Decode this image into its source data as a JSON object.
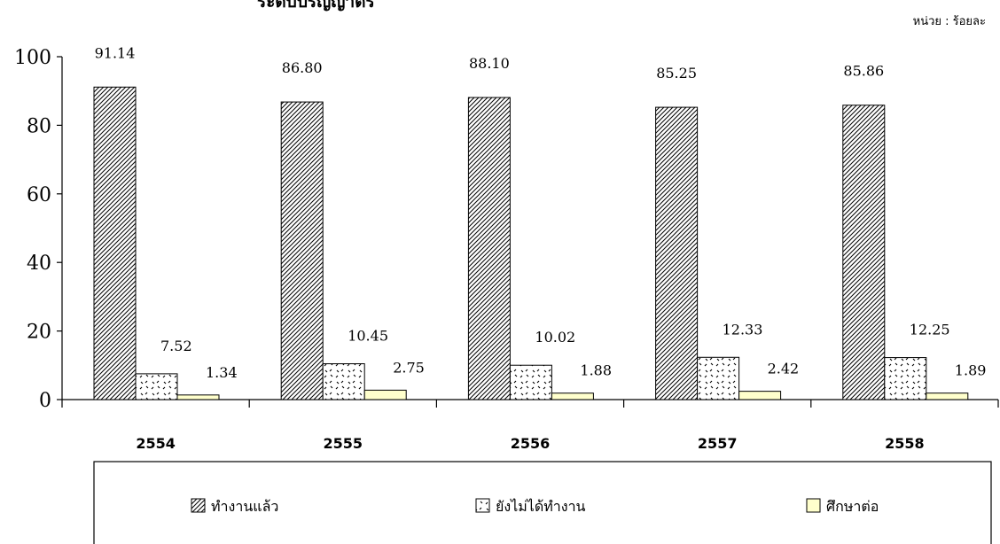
{
  "header": {
    "title": "ระดับปริญญาตรี",
    "unit": "หน่วย : ร้อยละ"
  },
  "colors": {
    "series1": "#000000",
    "series2": "#000000",
    "series3": "#ffffcc"
  },
  "chart_data": {
    "type": "bar",
    "title": "ระดับปริญญาตรี",
    "xlabel": "",
    "ylabel": "",
    "ylim": [
      0,
      100
    ],
    "yticks": [
      0,
      20,
      40,
      60,
      80,
      100
    ],
    "grid": false,
    "legend": "bottom",
    "categories": [
      "2554",
      "2555",
      "2556",
      "2557",
      "2558"
    ],
    "series": [
      {
        "name": "ทำงานแล้ว",
        "values": [
          91.14,
          86.8,
          88.1,
          85.25,
          85.86
        ],
        "labels": [
          "91.14",
          "86.80",
          "88.10",
          "85.25",
          "85.86"
        ],
        "pattern": "diagonal"
      },
      {
        "name": "ยังไม่ได้ทำงาน",
        "values": [
          7.52,
          10.45,
          10.02,
          12.33,
          12.25
        ],
        "labels": [
          "7.52",
          "10.45",
          "10.02",
          "12.33",
          "12.25"
        ],
        "pattern": "dots"
      },
      {
        "name": "ศึกษาต่อ",
        "values": [
          1.34,
          2.75,
          1.88,
          2.42,
          1.89
        ],
        "labels": [
          "1.34",
          "2.75",
          "1.88",
          "2.42",
          "1.89"
        ],
        "pattern": "solid"
      }
    ]
  }
}
